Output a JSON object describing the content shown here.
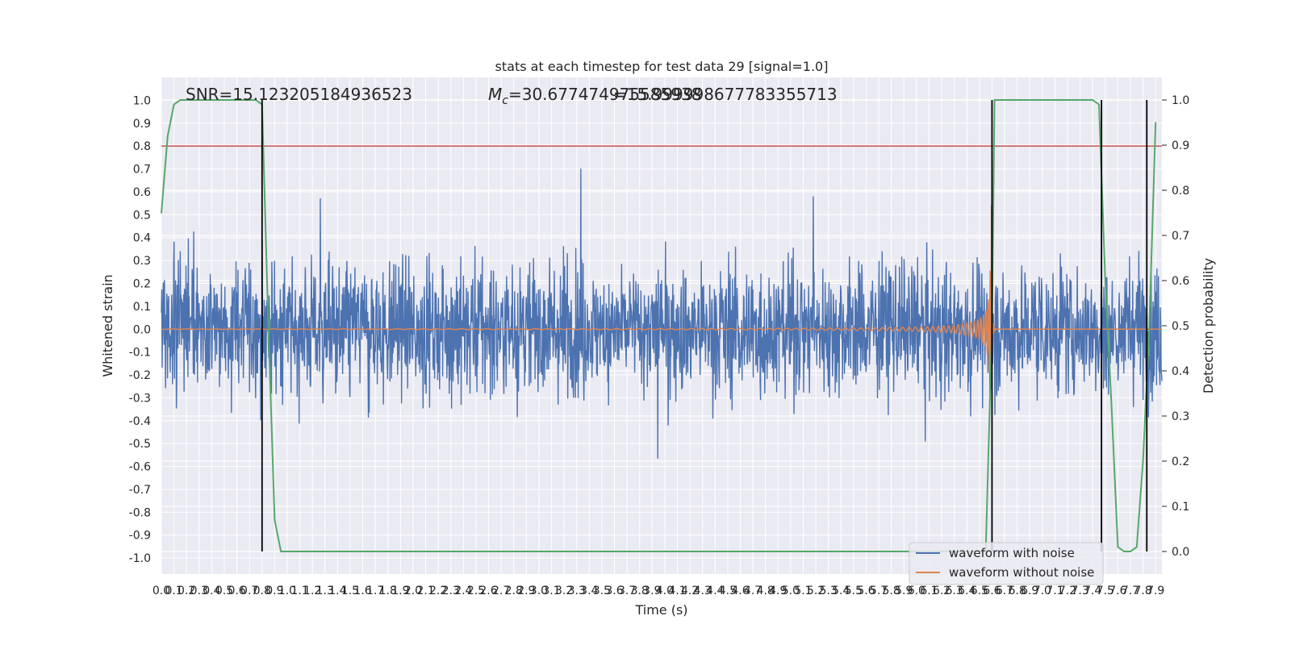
{
  "chart_data": {
    "type": "line",
    "title": "stats at each timestep for test data 29 [signal=1.0]",
    "xlabel": "Time (s)",
    "ylabel": "Whitened strain",
    "ylabel_right": "Detection probability",
    "xlim": [
      0.0,
      7.95
    ],
    "ylim": [
      -1.07,
      1.1
    ],
    "ylim_right": [
      -0.05,
      1.05
    ],
    "grid": true,
    "legend_placement": "lower right",
    "annotations": {
      "snr": "SNR=15.123205184936523",
      "mc_prefix": "M",
      "mc_sub": "c",
      "mc_value": "=30.677474975585938",
      "overlap": "=15.999998677783355713"
    },
    "x_ticks": [
      "0.0",
      "0.1",
      "0.2",
      "0.3",
      "0.4",
      "0.5",
      "0.6",
      "0.7",
      "0.8",
      "0.9",
      "1.0",
      "1.1",
      "1.2",
      "1.3",
      "1.4",
      "1.5",
      "1.6",
      "1.7",
      "1.8",
      "1.9",
      "2.0",
      "2.1",
      "2.2",
      "2.3",
      "2.4",
      "2.5",
      "2.6",
      "2.7",
      "2.8",
      "2.9",
      "3.0",
      "3.1",
      "3.2",
      "3.3",
      "3.4",
      "3.5",
      "3.6",
      "3.7",
      "3.8",
      "3.9",
      "4.0",
      "4.1",
      "4.2",
      "4.3",
      "4.4",
      "4.5",
      "4.6",
      "4.7",
      "4.8",
      "4.9",
      "5.0",
      "5.1",
      "5.2",
      "5.3",
      "5.4",
      "5.5",
      "5.6",
      "5.7",
      "5.8",
      "5.9",
      "6.0",
      "6.1",
      "6.2",
      "6.3",
      "6.4",
      "6.5",
      "6.6",
      "6.7",
      "6.8",
      "6.9",
      "7.0",
      "7.1",
      "7.2",
      "7.3",
      "7.4",
      "7.5",
      "7.6",
      "7.7",
      "7.8",
      "7.9"
    ],
    "y_ticks_left": [
      "1.0",
      "0.9",
      "0.8",
      "0.7",
      "0.6",
      "0.5",
      "0.4",
      "0.3",
      "0.2",
      "0.1",
      "0.0",
      "-0.1",
      "-0.2",
      "-0.3",
      "-0.4",
      "-0.5",
      "-0.6",
      "-0.7",
      "-0.8",
      "-0.9",
      "-1.0"
    ],
    "y_ticks_right": [
      "1.0",
      "0.9",
      "0.8",
      "0.7",
      "0.6",
      "0.5",
      "0.4",
      "0.3",
      "0.2",
      "0.1",
      "0.0"
    ],
    "series": [
      {
        "name": "waveform with noise",
        "color": "#4c72b0",
        "kind": "noise",
        "approx_sigma": 0.2,
        "peak_abs": 1.0
      },
      {
        "name": "waveform without noise",
        "color": "#dd8452",
        "kind": "chirp",
        "merger_time": 6.6,
        "peak_amplitude": 0.55
      },
      {
        "color": "#55a868",
        "kind": "detection_probability",
        "x": [
          0.0,
          0.05,
          0.1,
          0.15,
          0.2,
          0.3,
          0.4,
          0.5,
          0.6,
          0.7,
          0.75,
          0.8,
          0.85,
          0.9,
          0.95,
          1.0,
          1.5,
          2.0,
          3.0,
          4.0,
          5.0,
          6.0,
          6.55,
          6.6,
          6.62,
          6.65,
          6.7,
          6.8,
          7.0,
          7.2,
          7.4,
          7.45,
          7.5,
          7.55,
          7.6,
          7.65,
          7.7,
          7.75,
          7.8,
          7.85,
          7.9
        ],
        "y": [
          0.75,
          0.92,
          0.99,
          1.0,
          1.0,
          1.0,
          1.0,
          1.0,
          1.0,
          1.0,
          1.0,
          0.99,
          0.5,
          0.07,
          0.0,
          0.0,
          0.0,
          0.0,
          0.0,
          0.0,
          0.0,
          0.0,
          0.0,
          0.5,
          1.0,
          1.0,
          1.0,
          1.0,
          1.0,
          1.0,
          1.0,
          0.99,
          0.6,
          0.32,
          0.01,
          0.0,
          0.0,
          0.01,
          0.2,
          0.5,
          0.95
        ]
      }
    ],
    "threshold": {
      "value": 0.8,
      "axis": "left",
      "color": "#c44e52"
    },
    "event_lines": [
      0.8,
      6.6,
      7.47,
      7.83
    ]
  }
}
